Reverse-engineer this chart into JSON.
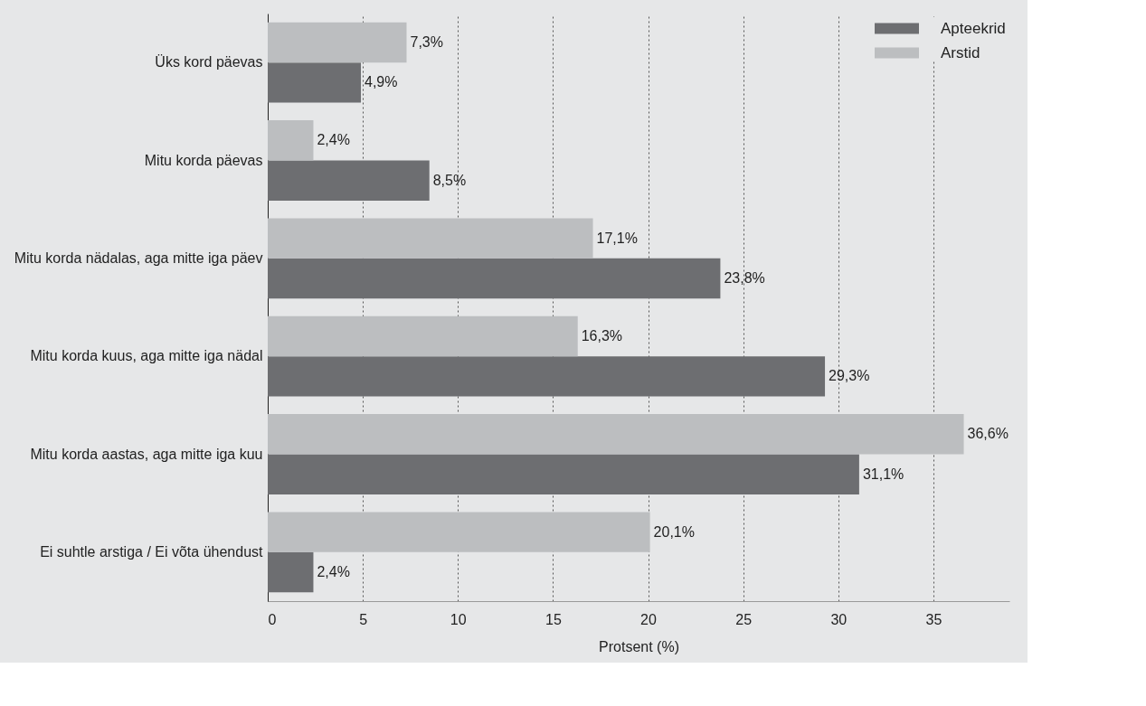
{
  "chart_data": {
    "type": "bar",
    "orientation": "horizontal",
    "xlabel": "Protsent (%)",
    "categories": [
      "Üks kord päevas",
      "Mitu korda päevas",
      "Mitu korda nädalas, aga mitte iga päev",
      "Mitu korda kuus, aga mitte iga nädal",
      "Mitu korda aastas, aga mitte iga kuu",
      "Ei suhtle arstiga / Ei võta ühendust"
    ],
    "series": [
      {
        "name": "Apteekrid",
        "color": "#6d6e71",
        "values": [
          4.9,
          8.5,
          23.8,
          29.3,
          31.1,
          2.4
        ],
        "value_labels": [
          "4,9%",
          "8,5%",
          "23,8%",
          "29,3%",
          "31,1%",
          "2,4%"
        ]
      },
      {
        "name": "Arstid",
        "color": "#bcbec0",
        "values": [
          7.3,
          2.4,
          17.1,
          16.3,
          36.6,
          20.1
        ],
        "value_labels": [
          "7,3%",
          "2,4%",
          "17,1%",
          "16,3%",
          "36,6%",
          "20,1%"
        ]
      }
    ],
    "xlim": [
      0,
      39
    ],
    "xticks": [
      0,
      5,
      10,
      15,
      20,
      25,
      30,
      35
    ],
    "grid": "x",
    "legend": "top right"
  }
}
